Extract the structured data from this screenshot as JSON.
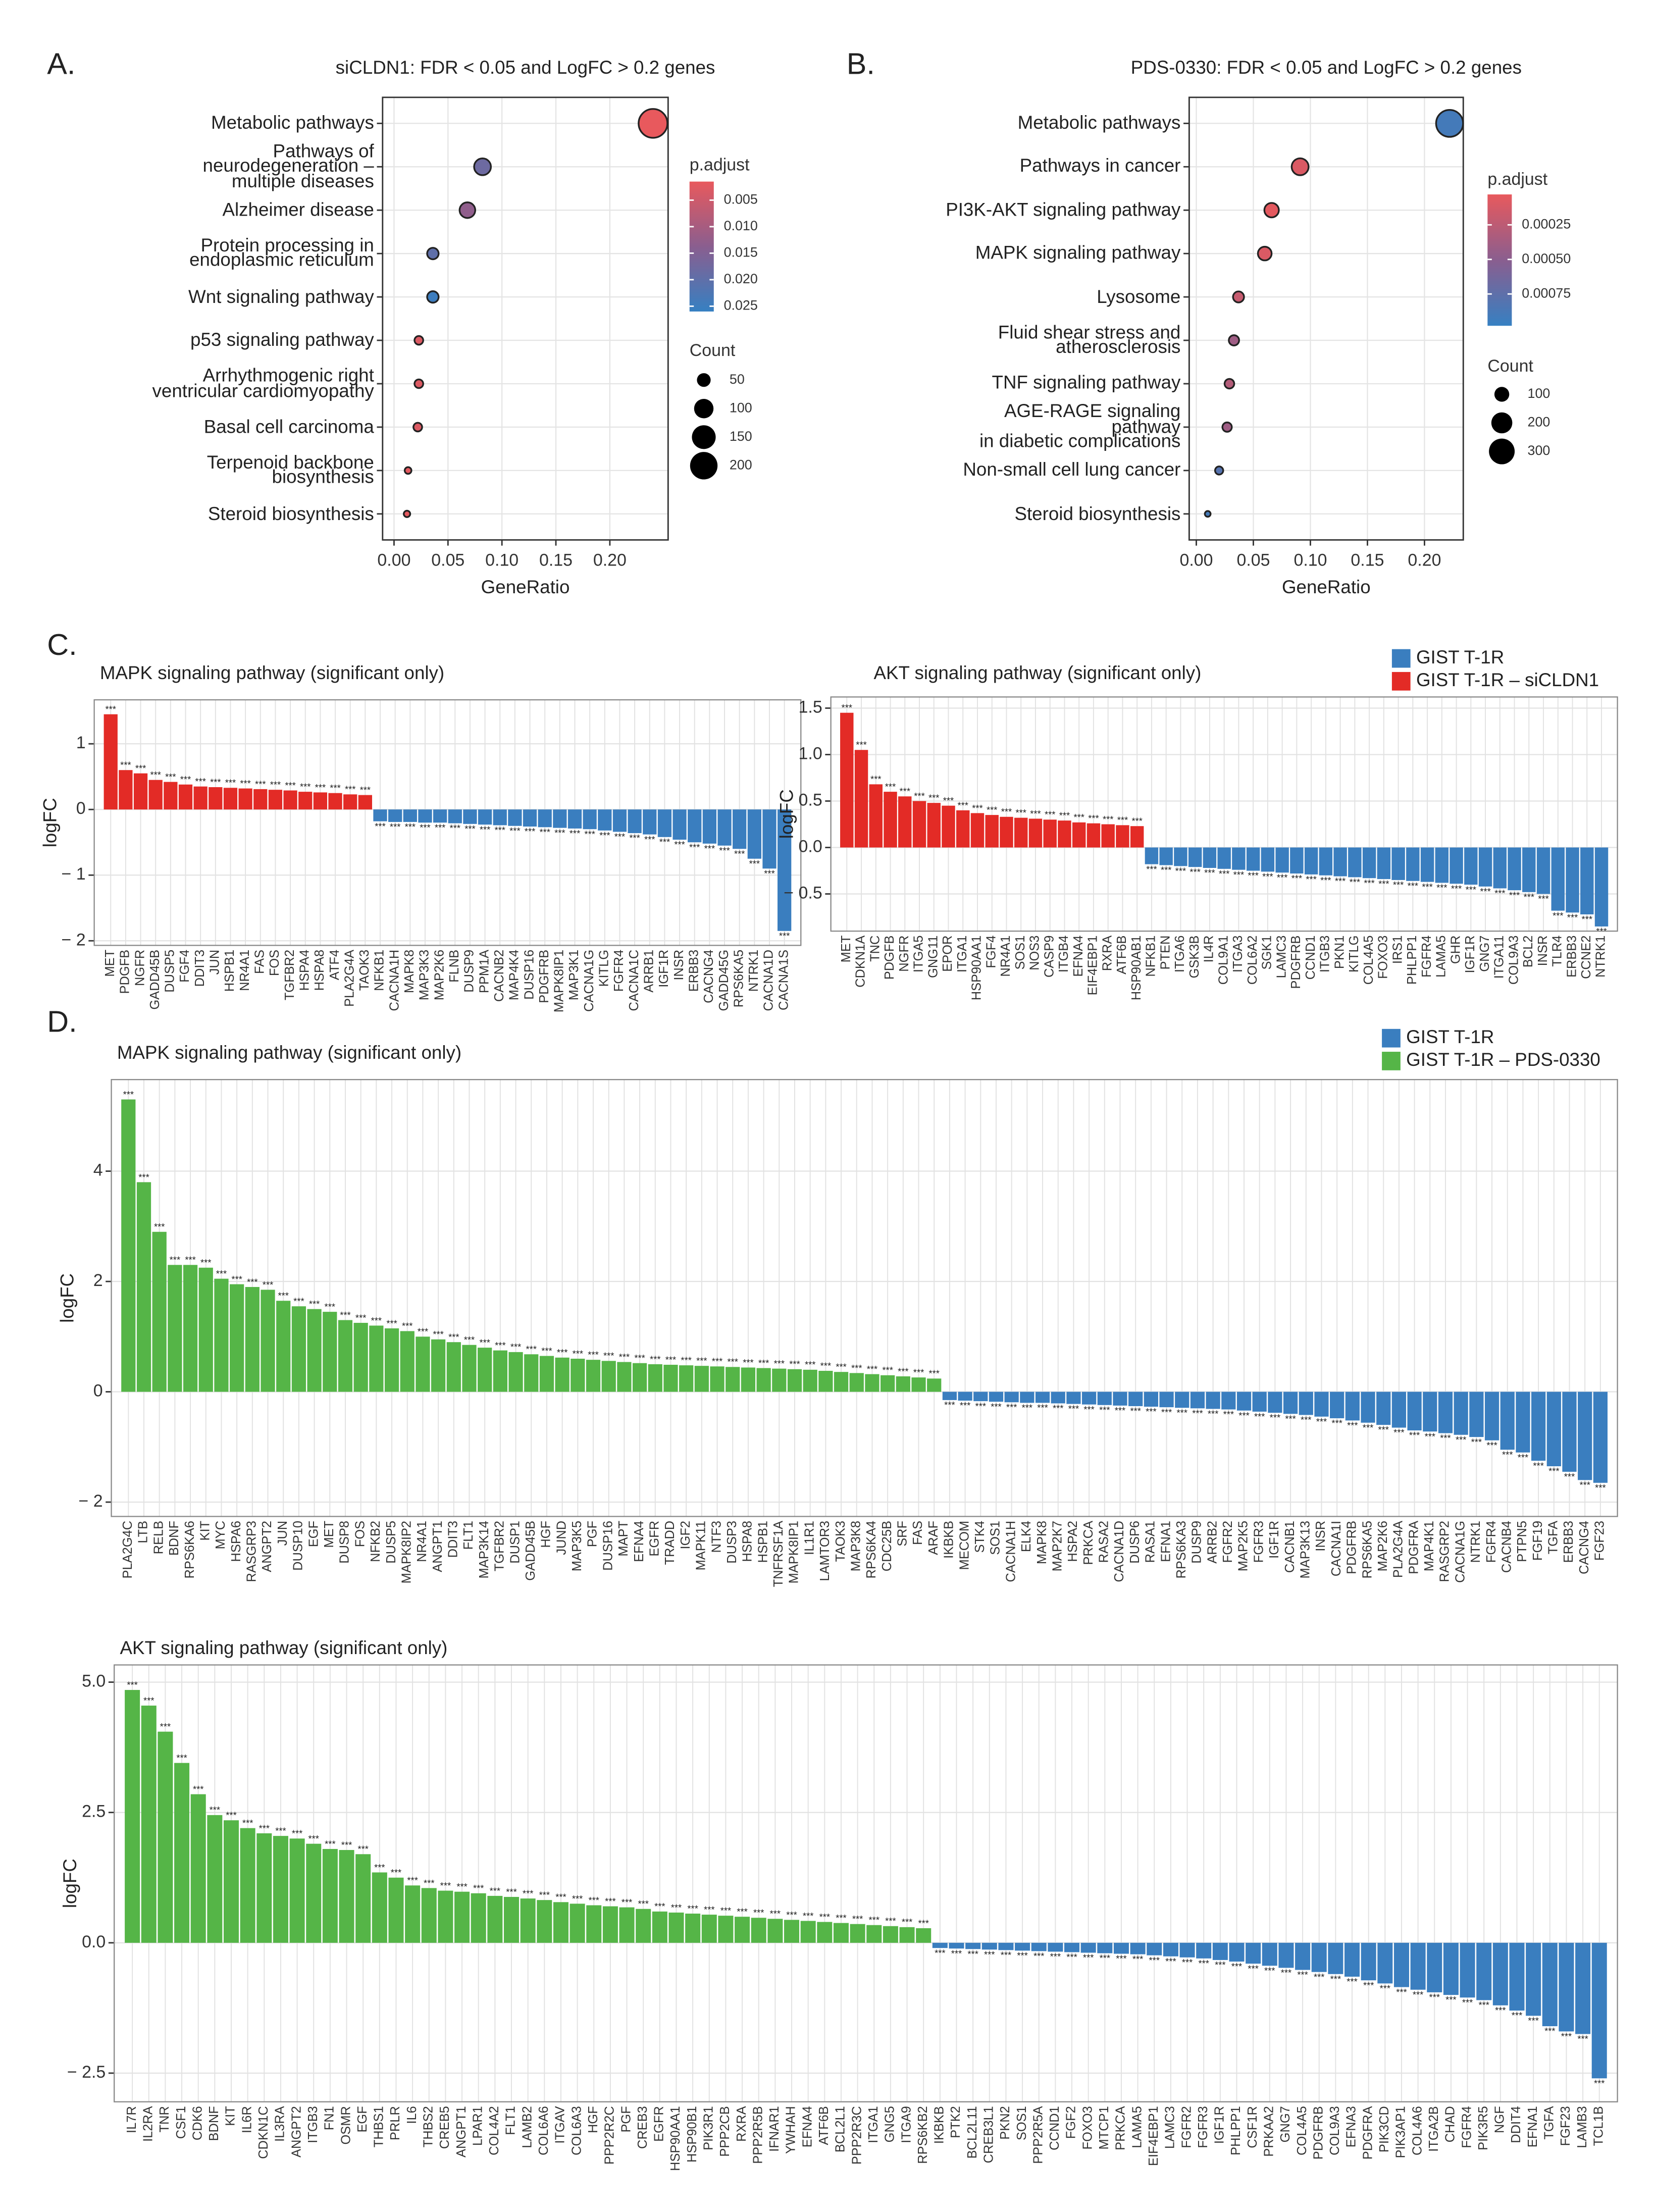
{
  "panels": [
    "A.",
    "B.",
    "C.",
    "D."
  ],
  "chart_data": [
    {
      "type": "dot",
      "title": "siCLDN1: FDR < 0.05 and LogFC > 0.2 genes",
      "categories": [
        "Metabolic pathways",
        "Pathways of\nneurodegeneration –\nmultiple diseases",
        "Alzheimer disease",
        "Protein processing in\nendoplasmic reticulum",
        "Wnt signaling pathway",
        "p53 signaling pathway",
        "Arrhythmogenic right\nventricular cardiomyopathy",
        "Basal cell carcinoma",
        "Terpenoid backbone\nbiosynthesis",
        "Steroid biosynthesis"
      ],
      "values": [
        0.24,
        0.082,
        0.068,
        0.036,
        0.036,
        0.023,
        0.023,
        0.022,
        0.013,
        0.012
      ],
      "p_adjust": [
        0.001,
        0.018,
        0.013,
        0.02,
        0.025,
        0.003,
        0.003,
        0.003,
        0.002,
        0.002
      ],
      "sizes": [
        220,
        75,
        65,
        35,
        35,
        20,
        20,
        20,
        12,
        11
      ],
      "xlabel": "GeneRatio",
      "xlim": [
        -0.0106,
        0.254
      ],
      "xticks": [
        {
          "value": 0,
          "label": "0.00"
        },
        0.05,
        {
          "value": 0.1,
          "label": "0.10"
        },
        0.15,
        {
          "value": 0.2,
          "label": "0.20"
        }
      ],
      "color_title": "p.adjust",
      "clim": [
        0.0015,
        0.026
      ],
      "cticks": [
        0.005,
        {
          "value": 0.01,
          "label": "0.010"
        },
        0.015,
        {
          "value": 0.02,
          "label": "0.020"
        },
        0.025
      ],
      "colormap": [
        "#e8595d",
        "#8a5e8f",
        "#3680c2"
      ],
      "size_title": "Count",
      "size_ticks": [
        50,
        100,
        150,
        200
      ]
    },
    {
      "type": "dot",
      "title": "PDS-0330: FDR < 0.05 and LogFC > 0.2 genes",
      "categories": [
        "Metabolic pathways",
        "Pathways in cancer",
        "PI3K-AKT signaling pathway",
        "MAPK signaling pathway",
        "Lysosome",
        "Fluid shear stress and\natherosclerosis",
        "TNF signaling pathway",
        "AGE-RAGE signaling pathway\nin diabetic complications",
        "Non-small cell lung cancer",
        "Steroid biosynthesis"
      ],
      "values": [
        0.222,
        0.091,
        0.066,
        0.06,
        0.037,
        0.033,
        0.029,
        0.027,
        0.02,
        0.01
      ],
      "p_adjust": [
        0.0009,
        0.0001,
        5e-05,
        0.0001,
        0.0002,
        0.0004,
        0.0003,
        0.0004,
        0.0008,
        0.0009
      ],
      "sizes": [
        330,
        130,
        95,
        85,
        55,
        48,
        42,
        40,
        30,
        15
      ],
      "xlabel": "GeneRatio",
      "xlim": [
        -0.00625,
        0.234
      ],
      "xticks": [
        {
          "value": 0,
          "label": "0.00"
        },
        0.05,
        {
          "value": 0.1,
          "label": "0.10"
        },
        0.15,
        {
          "value": 0.2,
          "label": "0.20"
        }
      ],
      "color_title": "p.adjust",
      "clim": [
        3e-05,
        0.00098
      ],
      "cticks": [
        0.00025,
        {
          "value": 0.0005,
          "label": "0.00050"
        },
        0.00075
      ],
      "colormap": [
        "#e8595d",
        "#8a5e8f",
        "#3680c2"
      ],
      "size_title": "Count",
      "size_ticks": [
        100,
        200,
        300
      ]
    },
    {
      "type": "bar",
      "title": "MAPK signaling pathway (significant only)",
      "ylabel": "logFC",
      "ylim": [
        -2.07,
        1.67
      ],
      "yticks": [
        {
          "value": -2,
          "label": "− 2"
        },
        {
          "value": -1,
          "label": "− 1"
        },
        0,
        1
      ],
      "grid": true,
      "series": [
        {
          "name": "GIST T-1R",
          "color": "#3a7ebf",
          "significance": "***",
          "categories": [
            "NFKB1",
            "CACNA1H",
            "MAPK8",
            "MAP3K3",
            "MAP2K6",
            "FLNB",
            "DUSP9",
            "PPM1A",
            "CACNB2",
            "MAP4K4",
            "DUSP16",
            "PDGFRB",
            "MAPK8IP1",
            "MAP3K1",
            "CACNA1G",
            "KITLG",
            "FGFR4",
            "CACNA1C",
            "ARRB1",
            "IGF1R",
            "INSR",
            "ERBB3",
            "CACNG4",
            "GADD45G",
            "RPS6KA5",
            "NTRK1",
            "CACNA1D",
            "CACNA1S"
          ],
          "values": [
            -0.18,
            -0.19,
            -0.19,
            -0.2,
            -0.2,
            -0.21,
            -0.22,
            -0.23,
            -0.24,
            -0.25,
            -0.26,
            -0.27,
            -0.28,
            -0.29,
            -0.3,
            -0.32,
            -0.34,
            -0.36,
            -0.38,
            -0.42,
            -0.46,
            -0.5,
            -0.52,
            -0.55,
            -0.6,
            -0.75,
            -0.9,
            -1.85
          ]
        },
        {
          "name": "GIST T-1R – siCLDN1",
          "color": "#e32b26",
          "significance": "***",
          "categories": [
            "MET",
            "PDGFB",
            "NGFR",
            "GADD45B",
            "DUSP5",
            "FGF4",
            "DDIT3",
            "JUN",
            "HSPB1",
            "NR4A1",
            "FAS",
            "FOS",
            "TGFBR2",
            "HSPA4",
            "HSPA8",
            "ATF4",
            "PLA2G4A",
            "TAOK3"
          ],
          "values": [
            1.45,
            0.6,
            0.55,
            0.45,
            0.42,
            0.38,
            0.35,
            0.34,
            0.33,
            0.32,
            0.31,
            0.3,
            0.29,
            0.27,
            0.26,
            0.25,
            0.23,
            0.22
          ]
        }
      ]
    },
    {
      "type": "bar",
      "title": "AKT signaling pathway (significant only)",
      "ylabel": "logFC",
      "legend": "top-right",
      "ylim": [
        -0.9,
        1.62
      ],
      "yticks": [
        {
          "value": -0.5,
          "label": "− 0.5"
        },
        {
          "value": 0,
          "label": "0.0"
        },
        0.5,
        {
          "value": 1,
          "label": "1.0"
        },
        1.5
      ],
      "grid": true,
      "series": [
        {
          "name": "GIST T-1R",
          "color": "#3a7ebf",
          "significance": "***",
          "categories": [
            "NFKB1",
            "PTEN",
            "ITGA6",
            "GSK3B",
            "IL4R",
            "COL9A1",
            "ITGA3",
            "COL6A2",
            "SGK1",
            "LAMC3",
            "PDGFRB",
            "CCND1",
            "ITGB3",
            "PKN1",
            "KITLG",
            "COL4A5",
            "FOXO3",
            "IRS1",
            "PHLPP1",
            "FGFR4",
            "LAMA5",
            "GHR",
            "IGF1R",
            "GNG7",
            "ITGA11",
            "COL9A3",
            "BCL2",
            "INSR",
            "TLR4",
            "ERBB3",
            "CCNE2",
            "NTRK1"
          ],
          "values": [
            -0.18,
            -0.19,
            -0.2,
            -0.21,
            -0.22,
            -0.23,
            -0.24,
            -0.25,
            -0.26,
            -0.27,
            -0.28,
            -0.29,
            -0.3,
            -0.31,
            -0.32,
            -0.33,
            -0.34,
            -0.35,
            -0.36,
            -0.37,
            -0.38,
            -0.39,
            -0.4,
            -0.42,
            -0.44,
            -0.46,
            -0.48,
            -0.5,
            -0.68,
            -0.7,
            -0.72,
            -0.85
          ]
        },
        {
          "name": "GIST T-1R – siCLDN1",
          "color": "#e32b26",
          "significance": "***",
          "categories": [
            "MET",
            "CDKN1A",
            "TNC",
            "PDGFB",
            "NGFR",
            "ITGA5",
            "GNG11",
            "EPOR",
            "ITGA1",
            "HSP90AA1",
            "FGF4",
            "NR4A1",
            "SOS1",
            "NOS3",
            "CASP9",
            "ITGB4",
            "EFNA4",
            "EIF4EBP1",
            "RXRA",
            "ATF6B",
            "HSP90AB1"
          ],
          "values": [
            1.45,
            1.05,
            0.68,
            0.6,
            0.55,
            0.5,
            0.48,
            0.45,
            0.4,
            0.37,
            0.35,
            0.33,
            0.32,
            0.31,
            0.3,
            0.29,
            0.27,
            0.26,
            0.25,
            0.24,
            0.23
          ]
        }
      ]
    },
    {
      "type": "bar",
      "title": "MAPK signaling pathway (significant only)",
      "ylabel": "logFC",
      "legend": "top-right",
      "ylim": [
        -2.26,
        5.66
      ],
      "yticks": [
        {
          "value": -2,
          "label": "− 2"
        },
        0,
        2,
        4
      ],
      "grid": true,
      "series": [
        {
          "name": "GIST T-1R",
          "color": "#3a7ebf",
          "significance": "***",
          "categories": [
            "IKBKB",
            "MECOM",
            "STK4",
            "SOS1",
            "CACNA1H",
            "ELK4",
            "MAPK8",
            "MAP2K7",
            "HSPA2",
            "PRKCA",
            "RASA2",
            "CACNA1D",
            "DUSP6",
            "RASA1",
            "EFNA1",
            "RPS6KA3",
            "DUSP9",
            "ARRB2",
            "FGFR2",
            "MAP2K5",
            "FGFR3",
            "IGF1R",
            "CACNB1",
            "MAP3K13",
            "INSR",
            "CACNA1I",
            "PDGFRB",
            "RPS6KA5",
            "MAP2K6",
            "PLA2G4A",
            "PDGFRA",
            "MAP4K1",
            "RASGRP2",
            "CACNA1G",
            "NTRK1",
            "FGFR4",
            "CACNB4",
            "PTPN5",
            "FGF19",
            "TGFA",
            "ERBB3",
            "CACNG4",
            "FGF23"
          ],
          "values": [
            -0.15,
            -0.16,
            -0.17,
            -0.18,
            -0.19,
            -0.2,
            -0.2,
            -0.21,
            -0.22,
            -0.23,
            -0.24,
            -0.25,
            -0.26,
            -0.27,
            -0.28,
            -0.29,
            -0.3,
            -0.31,
            -0.32,
            -0.34,
            -0.36,
            -0.38,
            -0.4,
            -0.42,
            -0.45,
            -0.48,
            -0.52,
            -0.56,
            -0.6,
            -0.65,
            -0.7,
            -0.72,
            -0.75,
            -0.78,
            -0.82,
            -0.88,
            -1.05,
            -1.1,
            -1.25,
            -1.35,
            -1.45,
            -1.6,
            -1.65
          ]
        },
        {
          "name": "GIST T-1R – PDS-0330",
          "color": "#55b547",
          "significance": "***",
          "categories": [
            "PLA2G4C",
            "LTB",
            "RELB",
            "BDNF",
            "RPS6KA6",
            "KIT",
            "MYC",
            "HSPA6",
            "RASGRP3",
            "ANGPT2",
            "JUN",
            "DUSP10",
            "EGF",
            "MET",
            "DUSP8",
            "FOS",
            "NFKB2",
            "DUSP5",
            "MAPK8IP2",
            "NR4A1",
            "ANGPT1",
            "DDIT3",
            "FLT1",
            "MAP3K14",
            "TGFBR2",
            "DUSP1",
            "GADD45B",
            "HGF",
            "JUND",
            "MAP3K5",
            "PGF",
            "DUSP16",
            "MAPT",
            "EFNA4",
            "EGFR",
            "TRADD",
            "IGF2",
            "MAPK11",
            "NTF3",
            "DUSP3",
            "HSPA8",
            "HSPB1",
            "TNFRSF1A",
            "MAPK8IP1",
            "IL1R1",
            "LAMTOR3",
            "TAOK3",
            "MAP3K8",
            "RPS6KA4",
            "CDC25B",
            "SRF",
            "FAS",
            "ARAF"
          ],
          "values": [
            5.3,
            3.8,
            2.9,
            2.3,
            2.3,
            2.25,
            2.05,
            1.95,
            1.9,
            1.85,
            1.65,
            1.55,
            1.5,
            1.45,
            1.3,
            1.25,
            1.2,
            1.15,
            1.1,
            1.0,
            0.95,
            0.9,
            0.85,
            0.8,
            0.75,
            0.72,
            0.68,
            0.65,
            0.62,
            0.6,
            0.58,
            0.56,
            0.54,
            0.52,
            0.5,
            0.49,
            0.48,
            0.47,
            0.46,
            0.45,
            0.44,
            0.43,
            0.42,
            0.41,
            0.4,
            0.38,
            0.36,
            0.34,
            0.32,
            0.3,
            0.28,
            0.26,
            0.24
          ]
        }
      ]
    },
    {
      "type": "bar",
      "title": "AKT signaling pathway (significant only)",
      "ylabel": "logFC",
      "ylim": [
        -3.05,
        5.33
      ],
      "yticks": [
        {
          "value": -2.5,
          "label": "− 2.5"
        },
        {
          "value": 0,
          "label": "0.0"
        },
        2.5,
        {
          "value": 5,
          "label": "5.0"
        }
      ],
      "grid": true,
      "series": [
        {
          "name": "GIST T-1R",
          "color": "#3a7ebf",
          "significance": "***",
          "categories": [
            "IKBKB",
            "PTK2",
            "BCL2L11",
            "CREB3L1",
            "PKN2",
            "SOS1",
            "PPP2R5A",
            "CCND1",
            "FGF2",
            "FOXO3",
            "MTCP1",
            "PRKCA",
            "LAMA5",
            "EIF4EBP1",
            "LAMC3",
            "FGFR2",
            "FGFR3",
            "IGF1R",
            "PHLPP1",
            "CSF1R",
            "PRKAA2",
            "GNG7",
            "COL4A5",
            "PDGFRB",
            "COL9A3",
            "EFNA3",
            "PDGFRA",
            "PIK3CD",
            "PIK3AP1",
            "COL4A6",
            "ITGA2B",
            "CHAD",
            "FGFR4",
            "PIK3R5",
            "NGF",
            "DDIT4",
            "EFNA1",
            "TGFA",
            "FGF23",
            "LAMB3",
            "TCL1B"
          ],
          "values": [
            -0.1,
            -0.11,
            -0.12,
            -0.13,
            -0.14,
            -0.15,
            -0.16,
            -0.17,
            -0.18,
            -0.19,
            -0.2,
            -0.21,
            -0.22,
            -0.24,
            -0.26,
            -0.28,
            -0.3,
            -0.33,
            -0.36,
            -0.4,
            -0.44,
            -0.48,
            -0.52,
            -0.56,
            -0.6,
            -0.65,
            -0.72,
            -0.78,
            -0.85,
            -0.9,
            -0.95,
            -1.0,
            -1.05,
            -1.1,
            -1.2,
            -1.3,
            -1.4,
            -1.6,
            -1.7,
            -1.75,
            -2.6
          ]
        },
        {
          "name": "GIST T-1R – PDS-0330",
          "color": "#55b547",
          "significance": "***",
          "categories": [
            "IL7R",
            "IL2RA",
            "TNR",
            "CSF1",
            "CDK6",
            "BDNF",
            "KIT",
            "IL6R",
            "CDKN1C",
            "IL3RA",
            "ANGPT2",
            "ITGB3",
            "FN1",
            "OSMR",
            "EGF",
            "THBS1",
            "PRLR",
            "IL6",
            "THBS2",
            "CREB5",
            "ANGPT1",
            "LPAR1",
            "COL4A2",
            "FLT1",
            "LAMB2",
            "COL6A6",
            "ITGAV",
            "COL6A3",
            "HGF",
            "PPP2R2C",
            "PGF",
            "CREB3",
            "EGFR",
            "HSP90AA1",
            "HSP90B1",
            "PIK3R1",
            "PPP2CB",
            "RXRA",
            "PPP2R5B",
            "IFNAR1",
            "YWHAH",
            "EFNA4",
            "ATF6B",
            "BCL2L1",
            "PPP2R3C",
            "ITGA1",
            "GNG5",
            "ITGA9",
            "RPS6KB2"
          ],
          "values": [
            4.85,
            4.55,
            4.05,
            3.45,
            2.85,
            2.45,
            2.35,
            2.2,
            2.1,
            2.05,
            2.0,
            1.9,
            1.8,
            1.78,
            1.7,
            1.35,
            1.25,
            1.1,
            1.05,
            1.0,
            0.98,
            0.95,
            0.9,
            0.88,
            0.85,
            0.82,
            0.78,
            0.75,
            0.72,
            0.7,
            0.68,
            0.65,
            0.6,
            0.58,
            0.56,
            0.54,
            0.52,
            0.5,
            0.48,
            0.46,
            0.44,
            0.42,
            0.4,
            0.38,
            0.36,
            0.34,
            0.32,
            0.3,
            0.28
          ]
        }
      ]
    }
  ]
}
